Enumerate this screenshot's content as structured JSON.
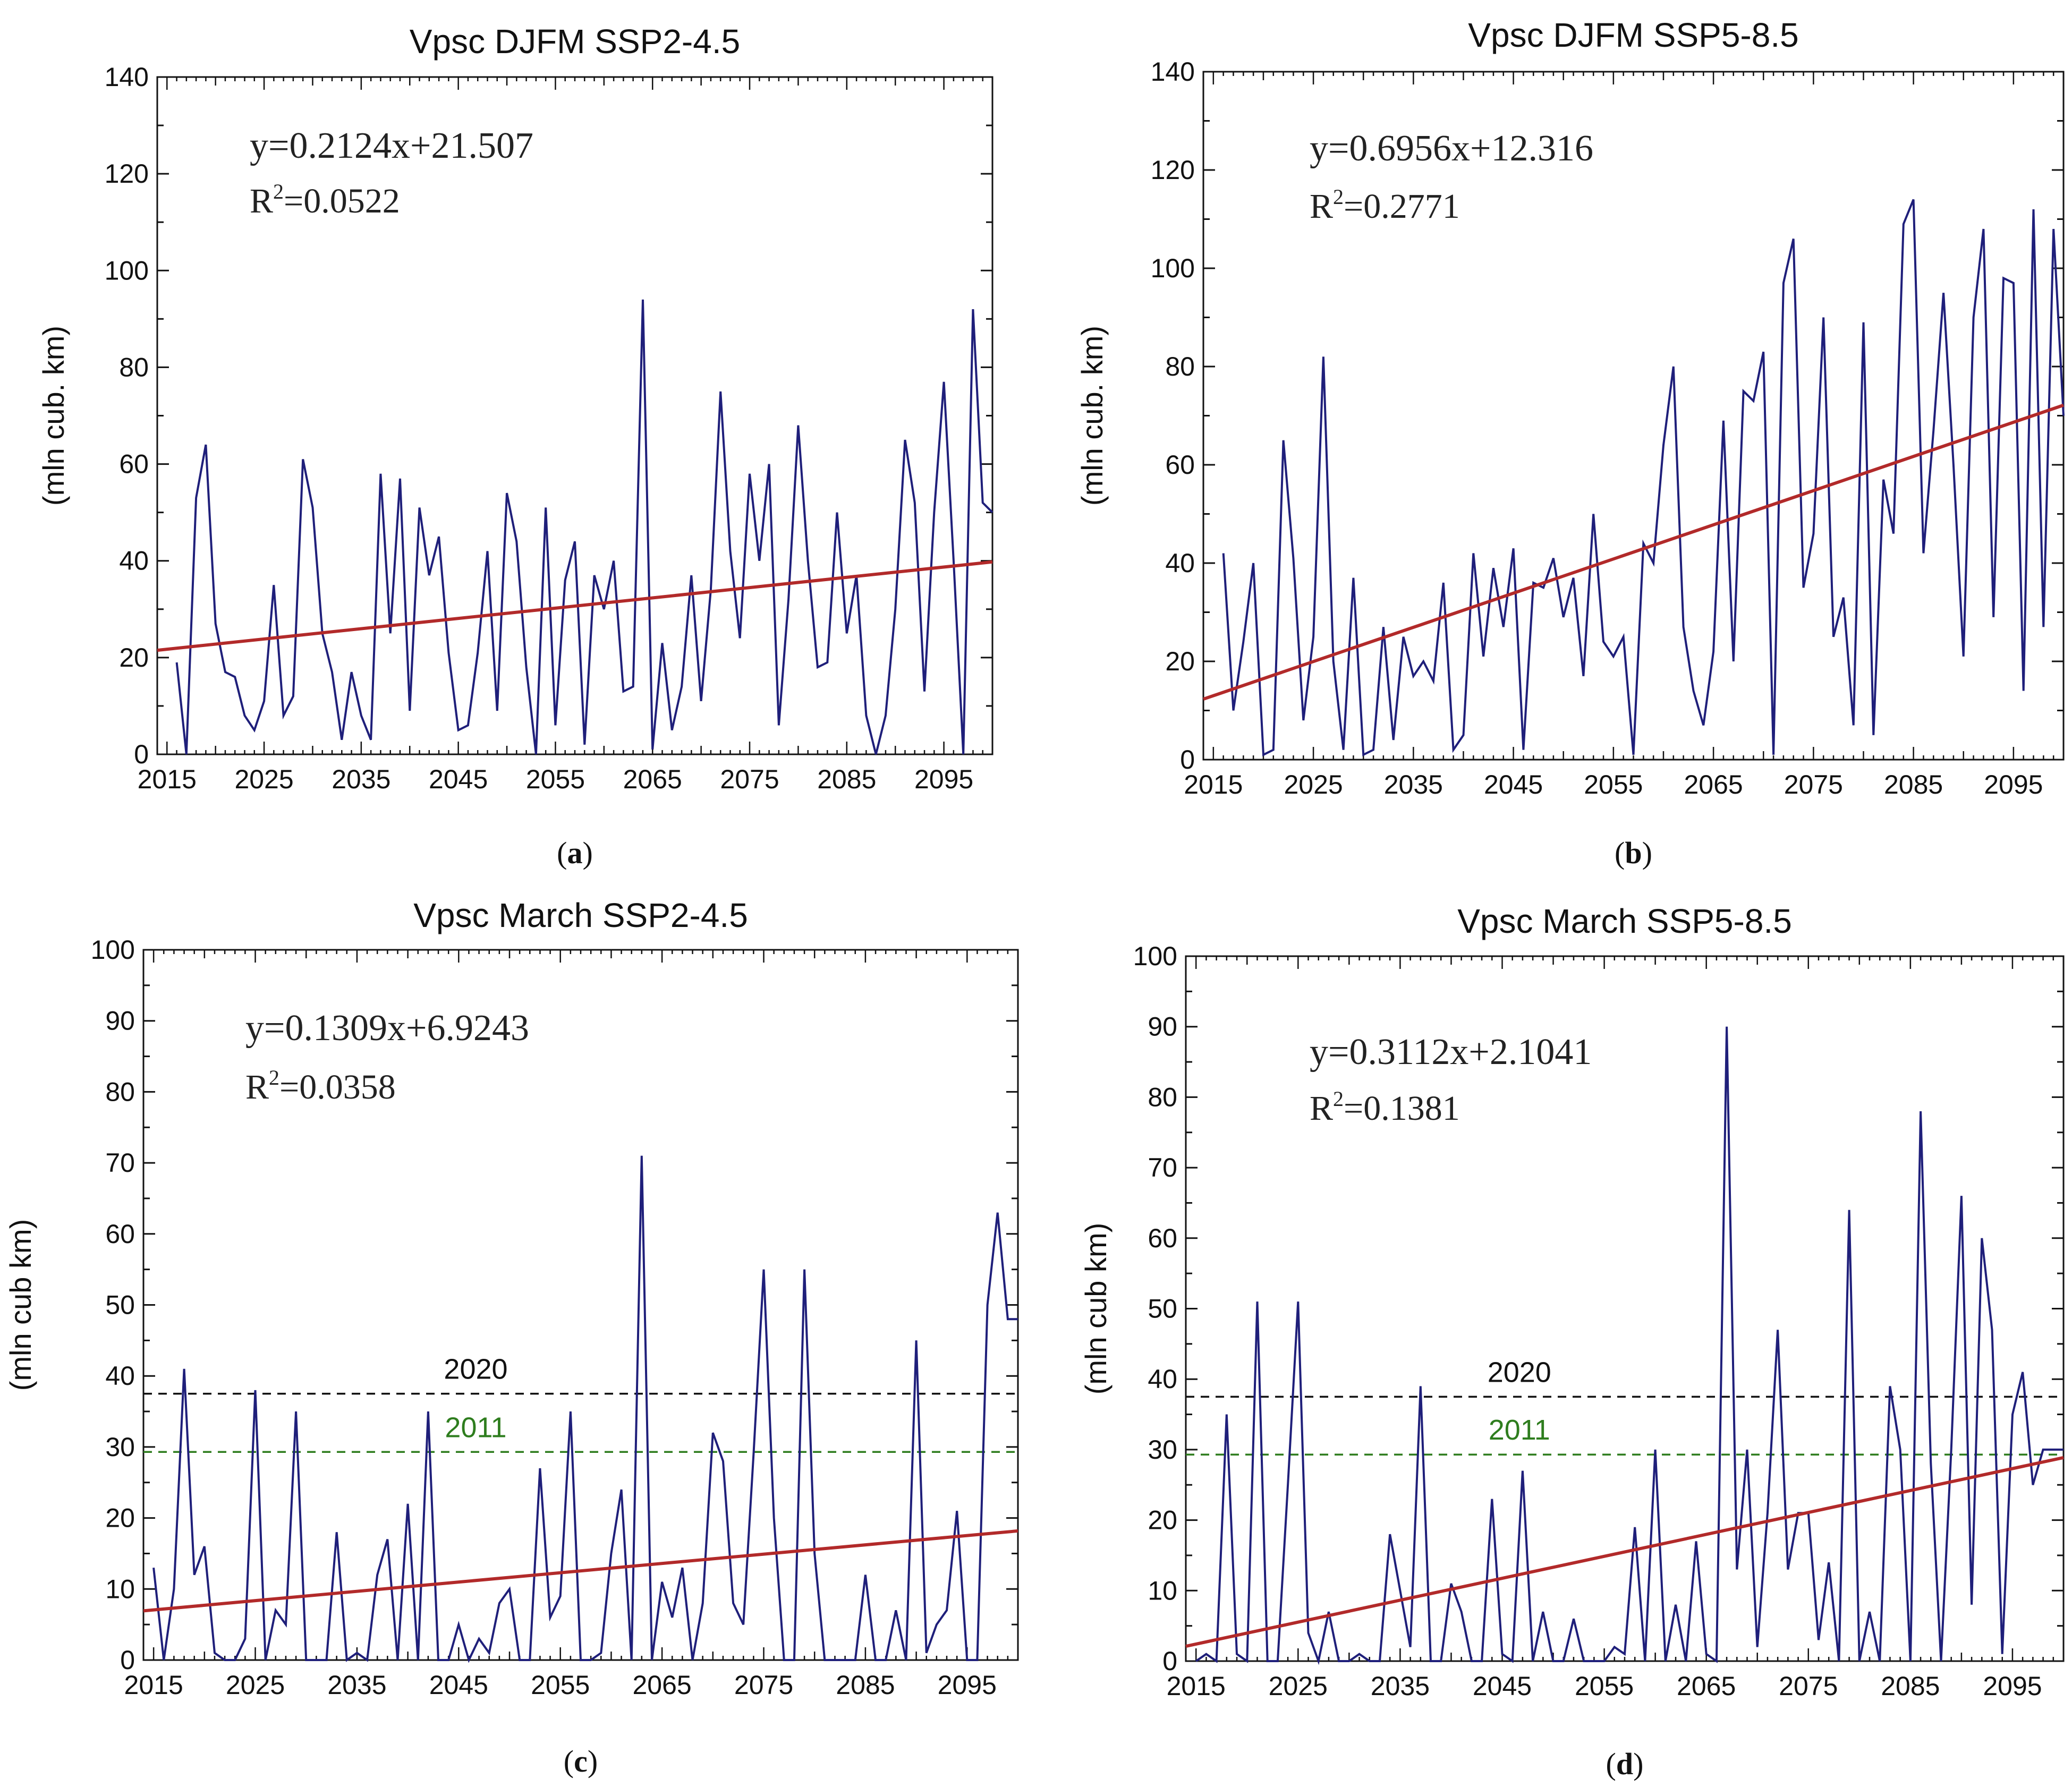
{
  "chart_data": [
    {
      "type": "line",
      "caption": "a",
      "title": "Vpsc  DJFM  SSP2-4.5",
      "ylabel": "(mln cub. km)",
      "xlabel": "",
      "xlim": [
        2014,
        2100
      ],
      "ylim": [
        0,
        140
      ],
      "xticks": [
        2015,
        2025,
        2035,
        2045,
        2055,
        2065,
        2075,
        2085,
        2095
      ],
      "yticks": [
        0,
        20,
        40,
        60,
        80,
        100,
        120,
        140
      ],
      "equation": "y=0.2124x+21.507",
      "r2_label": "R",
      "r2_value": "=0.0522",
      "trend": {
        "slope": 0.2124,
        "intercept": 21.507
      },
      "line_color": "#1f1f7a",
      "trend_color": "#b22a2a",
      "x": [
        2016,
        2017,
        2018,
        2019,
        2020,
        2021,
        2022,
        2023,
        2024,
        2025,
        2026,
        2027,
        2028,
        2029,
        2030,
        2031,
        2032,
        2033,
        2034,
        2035,
        2036,
        2037,
        2038,
        2039,
        2040,
        2041,
        2042,
        2043,
        2044,
        2045,
        2046,
        2047,
        2048,
        2049,
        2050,
        2051,
        2052,
        2053,
        2054,
        2055,
        2056,
        2057,
        2058,
        2059,
        2060,
        2061,
        2062,
        2063,
        2064,
        2065,
        2066,
        2067,
        2068,
        2069,
        2070,
        2071,
        2072,
        2073,
        2074,
        2075,
        2076,
        2077,
        2078,
        2079,
        2080,
        2081,
        2082,
        2083,
        2084,
        2085,
        2086,
        2087,
        2088,
        2089,
        2090,
        2091,
        2092,
        2093,
        2094,
        2095,
        2096,
        2097,
        2098,
        2099,
        2100
      ],
      "values": [
        19,
        0,
        53,
        64,
        27,
        17,
        16,
        8,
        5,
        11,
        35,
        8,
        12,
        61,
        51,
        25,
        17,
        3,
        17,
        8,
        3,
        58,
        25,
        57,
        9,
        51,
        37,
        45,
        21,
        5,
        6,
        21,
        42,
        9,
        54,
        44,
        18,
        0,
        51,
        6,
        36,
        44,
        2,
        37,
        30,
        40,
        13,
        14,
        94,
        1,
        23,
        5,
        14,
        37,
        11,
        34,
        75,
        42,
        24,
        58,
        40,
        60,
        6,
        32,
        68,
        40,
        18,
        19,
        50,
        25,
        37,
        8,
        0,
        8,
        30,
        65,
        52,
        13,
        50,
        77,
        40,
        0,
        92,
        52,
        50
      ],
      "reference_lines": []
    },
    {
      "type": "line",
      "caption": "b",
      "title": "Vpsc  DJFM  SSP5-8.5",
      "ylabel": "(mln cub. km)",
      "xlabel": "",
      "xlim": [
        2014,
        2100
      ],
      "ylim": [
        0,
        140
      ],
      "xticks": [
        2015,
        2025,
        2035,
        2045,
        2055,
        2065,
        2075,
        2085,
        2095
      ],
      "yticks": [
        0,
        20,
        40,
        60,
        80,
        100,
        120,
        140
      ],
      "equation": "y=0.6956x+12.316",
      "r2_label": "R",
      "r2_value": "=0.2771",
      "trend": {
        "slope": 0.6956,
        "intercept": 12.316
      },
      "line_color": "#1f1f7a",
      "trend_color": "#b22a2a",
      "x": [
        2016,
        2017,
        2018,
        2019,
        2020,
        2021,
        2022,
        2023,
        2024,
        2025,
        2026,
        2027,
        2028,
        2029,
        2030,
        2031,
        2032,
        2033,
        2034,
        2035,
        2036,
        2037,
        2038,
        2039,
        2040,
        2041,
        2042,
        2043,
        2044,
        2045,
        2046,
        2047,
        2048,
        2049,
        2050,
        2051,
        2052,
        2053,
        2054,
        2055,
        2056,
        2057,
        2058,
        2059,
        2060,
        2061,
        2062,
        2063,
        2064,
        2065,
        2066,
        2067,
        2068,
        2069,
        2070,
        2071,
        2072,
        2073,
        2074,
        2075,
        2076,
        2077,
        2078,
        2079,
        2080,
        2081,
        2082,
        2083,
        2084,
        2085,
        2086,
        2087,
        2088,
        2089,
        2090,
        2091,
        2092,
        2093,
        2094,
        2095,
        2096,
        2097,
        2098,
        2099,
        2100
      ],
      "values": [
        42,
        10,
        24,
        40,
        1,
        2,
        65,
        41,
        8,
        25,
        82,
        20,
        2,
        37,
        1,
        2,
        27,
        4,
        25,
        17,
        20,
        16,
        36,
        2,
        5,
        42,
        21,
        39,
        27,
        43,
        2,
        36,
        35,
        41,
        29,
        37,
        17,
        50,
        24,
        21,
        25,
        1,
        44,
        40,
        64,
        80,
        27,
        14,
        7,
        22,
        69,
        20,
        75,
        73,
        83,
        1,
        97,
        106,
        35,
        46,
        90,
        25,
        33,
        7,
        89,
        5,
        57,
        46,
        109,
        114,
        42,
        67,
        95,
        60,
        21,
        90,
        108,
        29,
        98,
        97,
        14,
        112,
        27,
        108,
        70
      ],
      "reference_lines": []
    },
    {
      "type": "line",
      "caption": "c",
      "title": "Vpsc March SSP2-4.5",
      "ylabel": "(mln cub km)",
      "xlabel": "",
      "xlim": [
        2014,
        2100
      ],
      "ylim": [
        0,
        100
      ],
      "xticks": [
        2015,
        2025,
        2035,
        2045,
        2055,
        2065,
        2075,
        2085,
        2095
      ],
      "yticks": [
        0,
        10,
        20,
        30,
        40,
        50,
        60,
        70,
        80,
        90,
        100
      ],
      "equation": "y=0.1309x+6.9243",
      "r2_label": "R",
      "r2_value": "=0.0358",
      "trend": {
        "slope": 0.1309,
        "intercept": 6.9243
      },
      "line_color": "#1f1f7a",
      "trend_color": "#b22a2a",
      "x": [
        2015,
        2016,
        2017,
        2018,
        2019,
        2020,
        2021,
        2022,
        2023,
        2024,
        2025,
        2026,
        2027,
        2028,
        2029,
        2030,
        2031,
        2032,
        2033,
        2034,
        2035,
        2036,
        2037,
        2038,
        2039,
        2040,
        2041,
        2042,
        2043,
        2044,
        2045,
        2046,
        2047,
        2048,
        2049,
        2050,
        2051,
        2052,
        2053,
        2054,
        2055,
        2056,
        2057,
        2058,
        2059,
        2060,
        2061,
        2062,
        2063,
        2064,
        2065,
        2066,
        2067,
        2068,
        2069,
        2070,
        2071,
        2072,
        2073,
        2074,
        2075,
        2076,
        2077,
        2078,
        2079,
        2080,
        2081,
        2082,
        2083,
        2084,
        2085,
        2086,
        2087,
        2088,
        2089,
        2090,
        2091,
        2092,
        2093,
        2094,
        2095,
        2096,
        2097,
        2098,
        2099,
        2100
      ],
      "values": [
        13,
        0,
        10,
        41,
        12,
        16,
        1,
        0,
        0,
        3,
        38,
        0,
        7,
        5,
        35,
        0,
        0,
        0,
        18,
        0,
        1,
        0,
        12,
        17,
        0,
        22,
        0,
        35,
        0,
        0,
        5,
        0,
        3,
        1,
        8,
        10,
        0,
        0,
        27,
        6,
        9,
        35,
        0,
        0,
        1,
        15,
        24,
        0,
        71,
        0,
        11,
        6,
        13,
        0,
        8,
        32,
        28,
        8,
        5,
        29,
        55,
        20,
        0,
        0,
        55,
        15,
        0,
        0,
        0,
        0,
        12,
        0,
        0,
        7,
        0,
        45,
        1,
        5,
        7,
        21,
        0,
        0,
        50,
        63,
        48,
        48
      ],
      "reference_lines": [
        {
          "label": "2020",
          "value": 37.5,
          "color": "#111111"
        },
        {
          "label": "2011",
          "value": 29.3,
          "color": "#2e7d1e"
        }
      ]
    },
    {
      "type": "line",
      "caption": "d",
      "title": "Vpsc March SSP5-8.5",
      "ylabel": "(mln cub km)",
      "xlabel": "",
      "xlim": [
        2014,
        2100
      ],
      "ylim": [
        0,
        100
      ],
      "xticks": [
        2015,
        2025,
        2035,
        2045,
        2055,
        2065,
        2075,
        2085,
        2095
      ],
      "yticks": [
        0,
        10,
        20,
        30,
        40,
        50,
        60,
        70,
        80,
        90,
        100
      ],
      "equation": "y=0.3112x+2.1041",
      "r2_label": "R",
      "r2_value": "=0.1381",
      "trend": {
        "slope": 0.3112,
        "intercept": 2.1041
      },
      "line_color": "#1f1f7a",
      "trend_color": "#b22a2a",
      "x": [
        2015,
        2016,
        2017,
        2018,
        2019,
        2020,
        2021,
        2022,
        2023,
        2024,
        2025,
        2026,
        2027,
        2028,
        2029,
        2030,
        2031,
        2032,
        2033,
        2034,
        2035,
        2036,
        2037,
        2038,
        2039,
        2040,
        2041,
        2042,
        2043,
        2044,
        2045,
        2046,
        2047,
        2048,
        2049,
        2050,
        2051,
        2052,
        2053,
        2054,
        2055,
        2056,
        2057,
        2058,
        2059,
        2060,
        2061,
        2062,
        2063,
        2064,
        2065,
        2066,
        2067,
        2068,
        2069,
        2070,
        2071,
        2072,
        2073,
        2074,
        2075,
        2076,
        2077,
        2078,
        2079,
        2080,
        2081,
        2082,
        2083,
        2084,
        2085,
        2086,
        2087,
        2088,
        2089,
        2090,
        2091,
        2092,
        2093,
        2094,
        2095,
        2096,
        2097,
        2098,
        2099,
        2100
      ],
      "values": [
        0,
        1,
        0,
        35,
        1,
        0,
        51,
        0,
        0,
        25,
        51,
        4,
        0,
        7,
        0,
        0,
        1,
        0,
        0,
        18,
        10,
        2,
        39,
        0,
        0,
        11,
        7,
        0,
        0,
        23,
        1,
        0,
        27,
        0,
        7,
        0,
        0,
        6,
        0,
        0,
        0,
        2,
        1,
        19,
        0,
        30,
        0,
        8,
        0,
        17,
        1,
        0,
        90,
        13,
        30,
        2,
        21,
        47,
        13,
        21,
        21,
        3,
        14,
        0,
        64,
        0,
        7,
        0,
        39,
        30,
        0,
        78,
        28,
        0,
        30,
        66,
        8,
        60,
        47,
        1,
        35,
        41,
        25,
        30,
        30,
        30
      ],
      "reference_lines": [
        {
          "label": "2020",
          "value": 37.5,
          "color": "#111111"
        },
        {
          "label": "2011",
          "value": 29.3,
          "color": "#2e7d1e"
        }
      ]
    }
  ]
}
